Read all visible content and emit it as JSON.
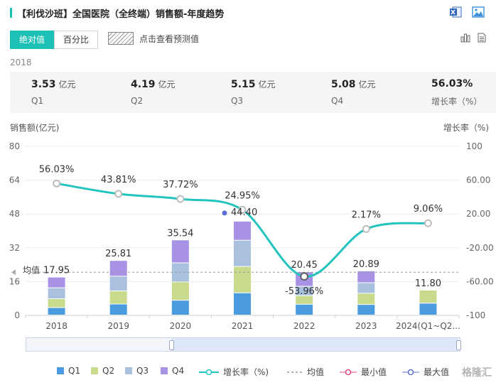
{
  "header": {
    "title": "【利伐沙班】全国医院（全终端）销售额-年度趋势",
    "icons": [
      "excel-export-icon",
      "image-export-icon"
    ]
  },
  "toolbar": {
    "toggle_absolute": "绝对值",
    "toggle_percent": "百分比",
    "forecast_label": "点击查看预测值",
    "icons": [
      "bar-chart-icon",
      "document-icon"
    ]
  },
  "summary": {
    "year": "2018",
    "items": [
      {
        "value": "3.53",
        "unit": "亿元",
        "label": "Q1"
      },
      {
        "value": "4.19",
        "unit": "亿元",
        "label": "Q2"
      },
      {
        "value": "5.15",
        "unit": "亿元",
        "label": "Q3"
      },
      {
        "value": "5.08",
        "unit": "亿元",
        "label": "Q4"
      },
      {
        "value": "56.03%",
        "unit": "",
        "label": "增长率（%）"
      }
    ]
  },
  "axes": {
    "left_title": "销售额(亿元)",
    "right_title": "增长率（%)"
  },
  "legend": {
    "q1": "Q1",
    "q2": "Q2",
    "q3": "Q3",
    "q4": "Q4",
    "growth": "增长率（%)",
    "avg": "均值",
    "min": "最小值",
    "max": "最大值"
  },
  "watermark": "格隆汇",
  "colors": {
    "accent": "#1cc0b5",
    "q1": "#4a9be0",
    "q2": "#c8da8c",
    "q3": "#a9c1df",
    "q4": "#a792e6",
    "growth": "#22c4bd",
    "avg": "#999999",
    "min": "#e0457b",
    "max": "#5b6fd6"
  },
  "chart_data": {
    "type": "bar",
    "stacked": true,
    "categories": [
      "2018",
      "2019",
      "2020",
      "2021",
      "2022",
      "2023",
      "2024(Q1~Q2..."
    ],
    "series": [
      {
        "name": "Q1",
        "values": [
          3.53,
          5.2,
          7.0,
          10.5,
          5.1,
          5.0,
          5.6
        ]
      },
      {
        "name": "Q2",
        "values": [
          4.19,
          6.2,
          8.7,
          12.5,
          4.1,
          5.3,
          6.2
        ]
      },
      {
        "name": "Q3",
        "values": [
          5.15,
          7.0,
          9.0,
          12.4,
          4.4,
          5.0,
          0
        ]
      },
      {
        "name": "Q4",
        "values": [
          5.08,
          7.41,
          10.84,
          9.0,
          6.85,
          5.59,
          0
        ]
      }
    ],
    "totals": [
      "17.95",
      "25.81",
      "35.54",
      "44.40",
      "20.45",
      "20.89",
      "11.80"
    ],
    "growth": {
      "name": "增长率（%)",
      "values": [
        56.03,
        43.81,
        37.72,
        24.95,
        -53.96,
        2.17,
        9.06
      ],
      "labels": [
        "56.03%",
        "43.81%",
        "37.72%",
        "24.95%",
        "-53.96%",
        "2.17%",
        "9.06%"
      ]
    },
    "average_label": "均值",
    "average_value": 20.4,
    "ylim_left": [
      0,
      80
    ],
    "yticks_left": [
      0,
      16,
      32,
      48,
      64,
      80
    ],
    "ylim_right": [
      -100,
      100
    ],
    "yticks_right": [
      "-100",
      "-60.00",
      "-20.00",
      "20.00",
      "60.00",
      "100"
    ],
    "max_marker_index": 3,
    "min_marker_index": 4
  }
}
